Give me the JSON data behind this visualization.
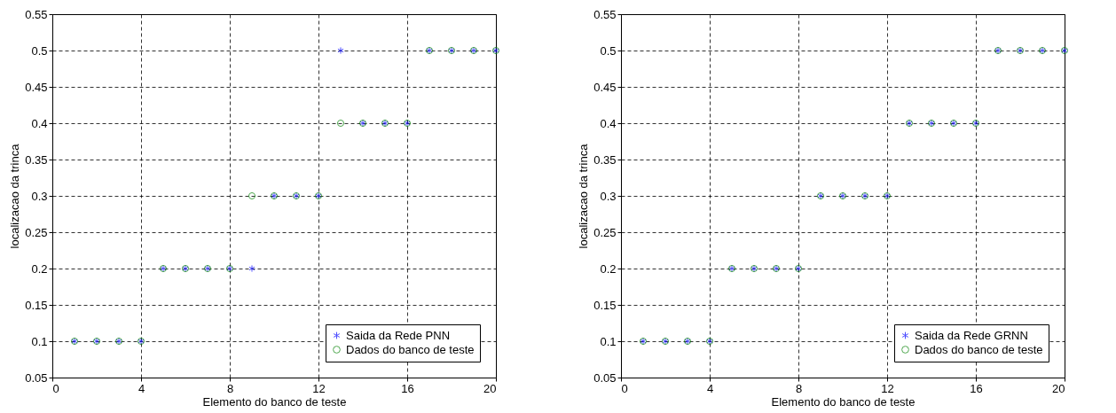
{
  "chart_data": [
    {
      "type": "scatter",
      "xlabel": "Elemento do banco de teste",
      "ylabel": "localizacao da trinca",
      "x": [
        1,
        2,
        3,
        4,
        5,
        6,
        7,
        8,
        9,
        10,
        11,
        12,
        13,
        14,
        15,
        16,
        17,
        18,
        19,
        20
      ],
      "xlim": [
        0,
        20
      ],
      "xticks": [
        0,
        4,
        8,
        12,
        16,
        20
      ],
      "ylim": [
        0.05,
        0.55
      ],
      "yticks": [
        0.05,
        0.1,
        0.15,
        0.2,
        0.25,
        0.3,
        0.35,
        0.4,
        0.45,
        0.5,
        0.55
      ],
      "grid": true,
      "legend": "bottom right",
      "series": [
        {
          "name": "Saida da Rede PNN",
          "color": "#0000ff",
          "marker": "cross",
          "values": [
            0.1,
            0.1,
            0.1,
            0.1,
            0.2,
            0.2,
            0.2,
            0.2,
            0.2,
            0.3,
            0.3,
            0.3,
            0.5,
            0.4,
            0.4,
            0.4,
            0.5,
            0.5,
            0.5,
            0.5
          ]
        },
        {
          "name": "Dados do banco de teste",
          "color": "#008000",
          "marker": "circle",
          "values": [
            0.1,
            0.1,
            0.1,
            0.1,
            0.2,
            0.2,
            0.2,
            0.2,
            0.3,
            0.3,
            0.3,
            0.3,
            0.4,
            0.4,
            0.4,
            0.4,
            0.5,
            0.5,
            0.5,
            0.5
          ]
        }
      ]
    },
    {
      "type": "scatter",
      "xlabel": "Elemento do banco de teste",
      "ylabel": "localizacao da trinca",
      "x": [
        1,
        2,
        3,
        4,
        5,
        6,
        7,
        8,
        9,
        10,
        11,
        12,
        13,
        14,
        15,
        16,
        17,
        18,
        19,
        20
      ],
      "xlim": [
        0,
        20
      ],
      "xticks": [
        0,
        4,
        8,
        12,
        16,
        20
      ],
      "ylim": [
        0.05,
        0.55
      ],
      "yticks": [
        0.05,
        0.1,
        0.15,
        0.2,
        0.25,
        0.3,
        0.35,
        0.4,
        0.45,
        0.5,
        0.55
      ],
      "grid": true,
      "legend": "bottom right",
      "series": [
        {
          "name": "Saida da Rede GRNN",
          "color": "#0000ff",
          "marker": "cross",
          "values": [
            0.1,
            0.1,
            0.1,
            0.1,
            0.2,
            0.2,
            0.2,
            0.2,
            0.3,
            0.3,
            0.3,
            0.3,
            0.4,
            0.4,
            0.4,
            0.4,
            0.5,
            0.5,
            0.5,
            0.5
          ]
        },
        {
          "name": "Dados do banco de teste",
          "color": "#008000",
          "marker": "circle",
          "values": [
            0.1,
            0.1,
            0.1,
            0.1,
            0.2,
            0.2,
            0.2,
            0.2,
            0.3,
            0.3,
            0.3,
            0.3,
            0.4,
            0.4,
            0.4,
            0.4,
            0.5,
            0.5,
            0.5,
            0.5
          ]
        }
      ]
    }
  ]
}
